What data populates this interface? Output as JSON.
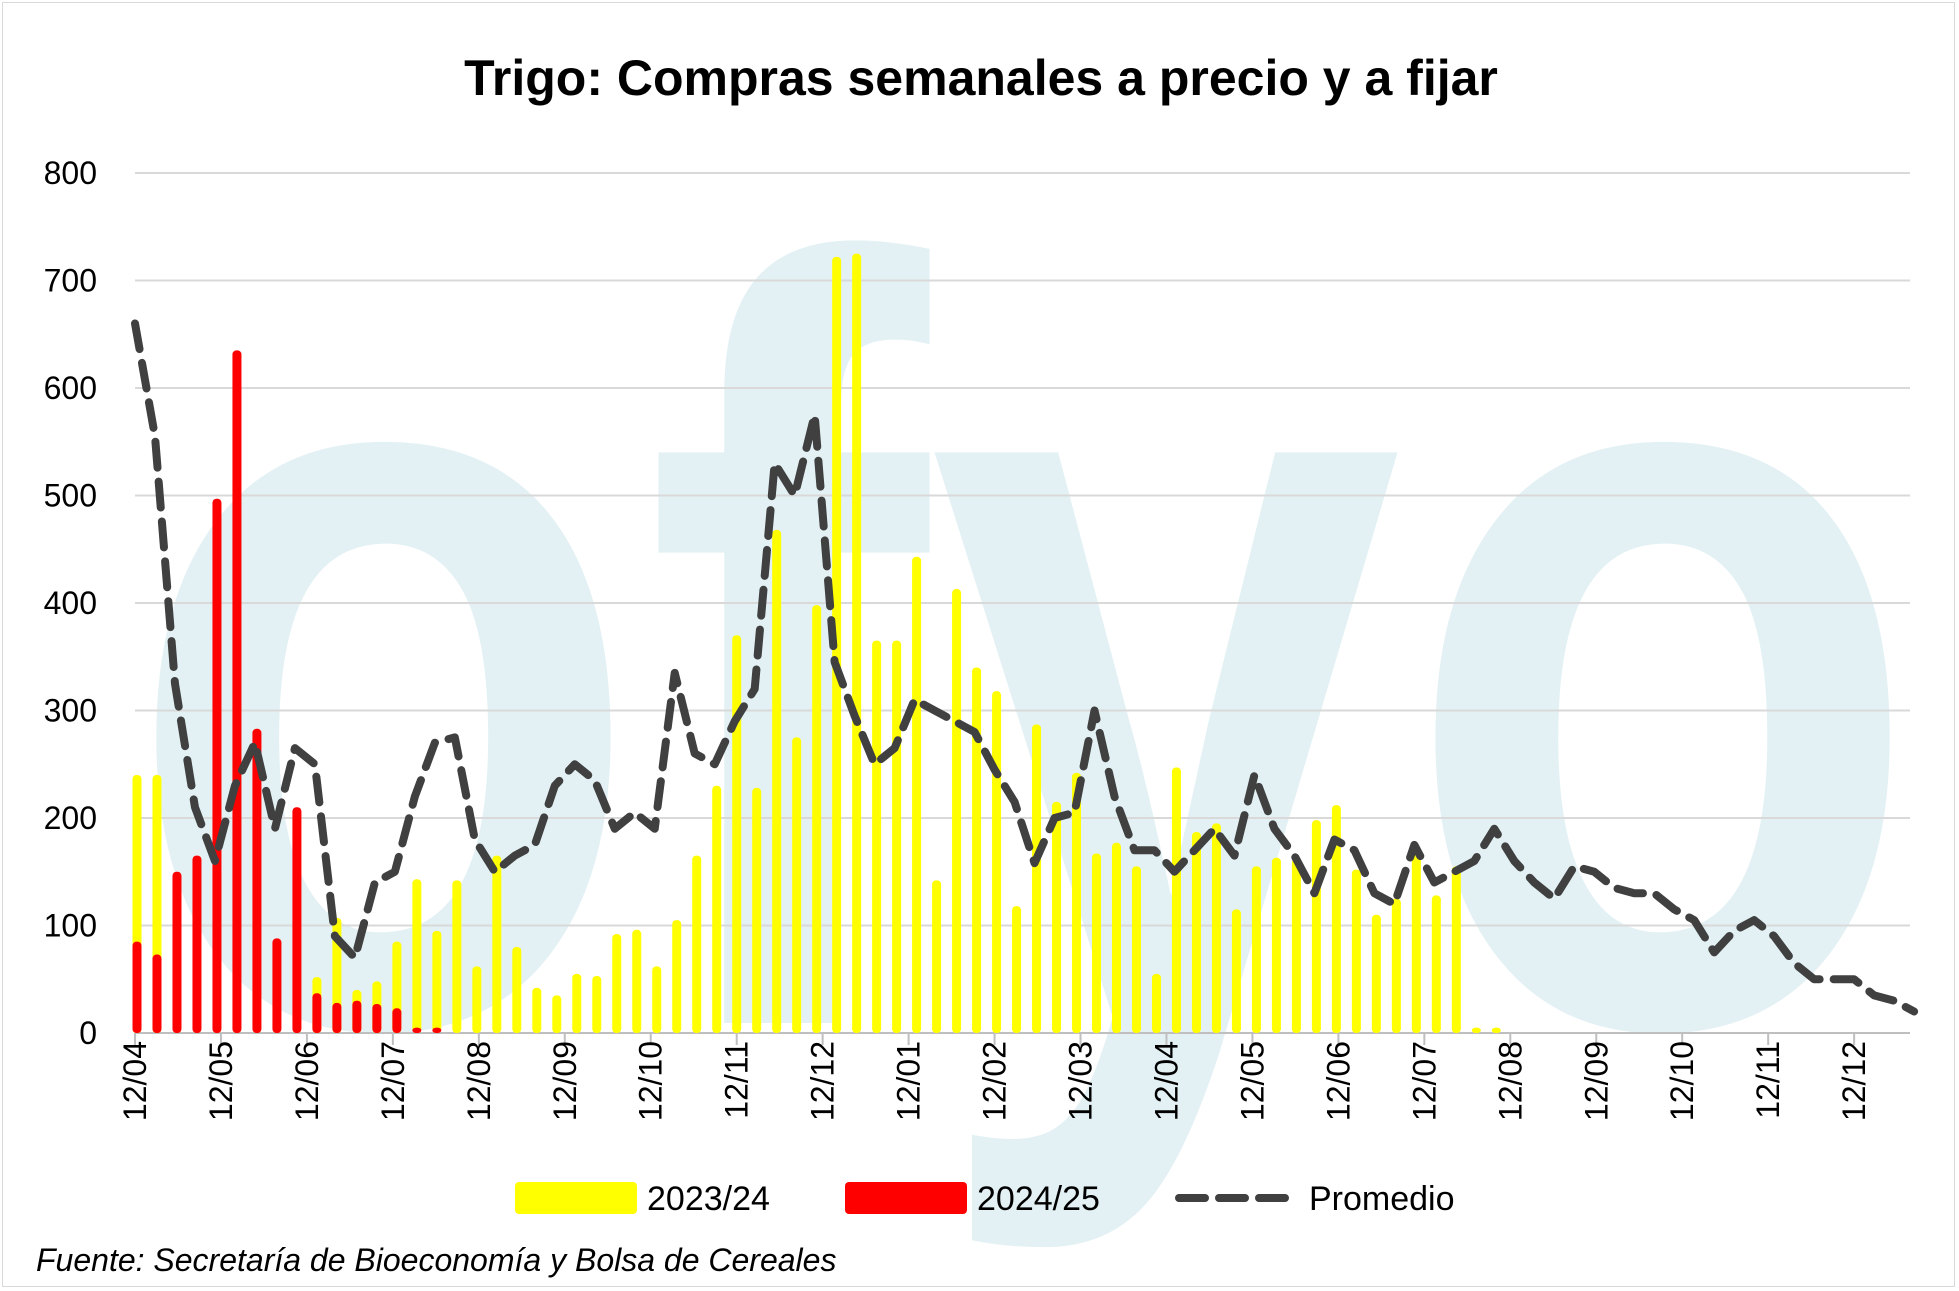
{
  "chart_data": {
    "type": "bar",
    "title": "Trigo: Compras semanales a precio y a fijar",
    "source": "Fuente: Secretaría de Bioeconomía y Bolsa de Cereales",
    "watermark": "ofyo",
    "ylim": [
      0,
      800
    ],
    "yticks": [
      0,
      100,
      200,
      300,
      400,
      500,
      600,
      700,
      800
    ],
    "xtick_labels": [
      "12/04",
      "12/05",
      "12/06",
      "12/07",
      "12/08",
      "12/09",
      "12/10",
      "12/11",
      "12/12",
      "12/01",
      "12/02",
      "12/03",
      "12/04",
      "12/05",
      "12/06",
      "12/07",
      "12/08",
      "12/09",
      "12/10",
      "12/11",
      "12/12"
    ],
    "grid": true,
    "legend_position": "bottom",
    "colors": {
      "2023/24": "#ffff00",
      "2024/25": "#ff0000",
      "Promedio": "#404040",
      "grid": "#d9d9d9",
      "watermark": "#e3f1f4"
    },
    "series": [
      {
        "name": "2023/24",
        "kind": "bar",
        "values": [
          240,
          240,
          null,
          null,
          null,
          null,
          null,
          null,
          null,
          52,
          107,
          40,
          48,
          85,
          143,
          95,
          142,
          62,
          165,
          80,
          42,
          35,
          55,
          53,
          92,
          96,
          62,
          105,
          165,
          230,
          370,
          228,
          468,
          275,
          398,
          722,
          725,
          365,
          365,
          443,
          142,
          413,
          340,
          318,
          118,
          287,
          215,
          242,
          167,
          177,
          155,
          55,
          247,
          187,
          195,
          115,
          155,
          163,
          162,
          198,
          212,
          152,
          110,
          125,
          168,
          128,
          155,
          5,
          5
        ]
      },
      {
        "name": "2024/25",
        "kind": "bar",
        "values": [
          85,
          73,
          150,
          165,
          497,
          635,
          283,
          88,
          210,
          37,
          28,
          30,
          27,
          23,
          5,
          5
        ]
      },
      {
        "name": "Promedio",
        "kind": "line",
        "style": "dashed",
        "values": [
          660,
          555,
          325,
          210,
          160,
          230,
          270,
          190,
          265,
          250,
          90,
          70,
          140,
          150,
          220,
          270,
          275,
          180,
          150,
          165,
          175,
          230,
          250,
          235,
          190,
          205,
          190,
          335,
          260,
          250,
          290,
          320,
          530,
          500,
          575,
          345,
          295,
          250,
          265,
          310,
          300,
          290,
          280,
          245,
          215,
          158,
          200,
          205,
          300,
          220,
          170,
          170,
          150,
          170,
          190,
          165,
          240,
          190,
          165,
          130,
          180,
          170,
          130,
          120,
          175,
          140,
          150,
          160,
          190,
          160,
          140,
          125,
          155,
          150,
          135,
          130,
          130,
          115,
          105,
          75,
          95,
          105,
          90,
          65,
          50,
          50,
          50,
          35,
          30,
          20
        ]
      }
    ],
    "legend": [
      "2023/24",
      "2024/25",
      "Promedio"
    ]
  }
}
